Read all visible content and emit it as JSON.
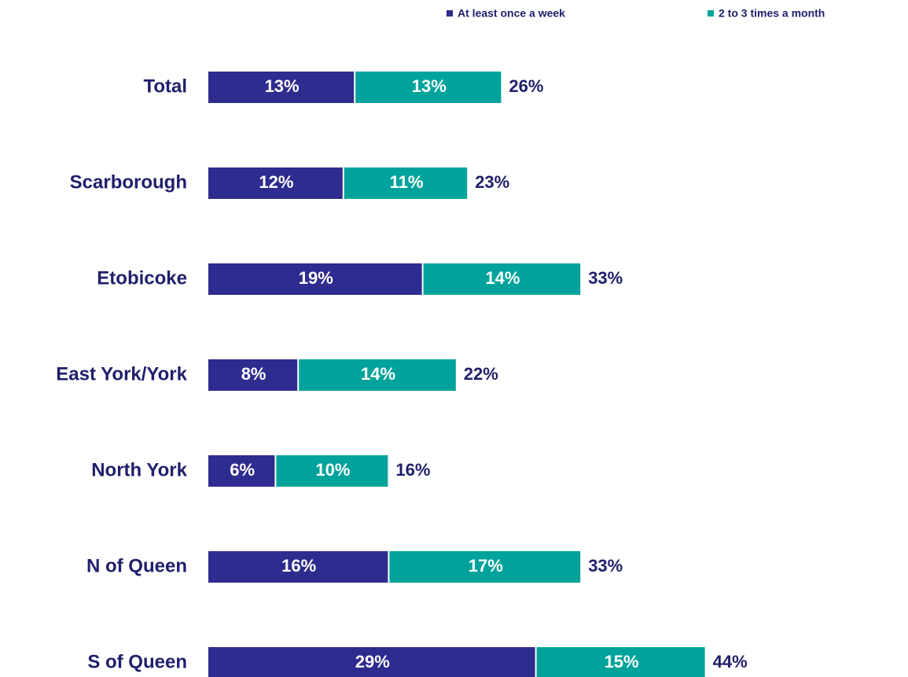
{
  "chart_data": {
    "type": "stacked-bar-horizontal",
    "categories": [
      "Total",
      "Scarborough",
      "Etobicoke",
      "East York/York",
      "North York",
      "N of Queen",
      "S of Queen"
    ],
    "series": [
      {
        "name": "At least once a week",
        "color": "#2e2c8e",
        "values": [
          13,
          12,
          19,
          8,
          6,
          16,
          29
        ],
        "value_labels": [
          "13%",
          "12%",
          "19%",
          "8%",
          "6%",
          "16%",
          "29%"
        ]
      },
      {
        "name": "2 to 3 times a month",
        "color": "#00a39b",
        "values": [
          13,
          11,
          14,
          14,
          10,
          17,
          15
        ],
        "value_labels": [
          "13%",
          "11%",
          "14%",
          "14%",
          "10%",
          "17%",
          "15%"
        ]
      }
    ],
    "totals": {
      "values": [
        26,
        23,
        33,
        22,
        16,
        33,
        44
      ],
      "value_labels": [
        "26%",
        "23%",
        "33%",
        "22%",
        "16%",
        "33%",
        "44%"
      ]
    },
    "xlim": [
      0,
      60
    ],
    "legend": "top-right"
  }
}
